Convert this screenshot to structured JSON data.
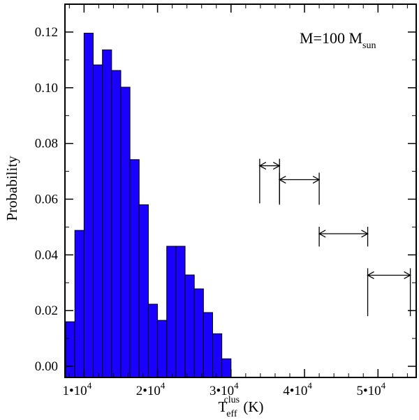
{
  "chart_data": {
    "type": "bar",
    "annotation": {
      "main": "M=100 M",
      "sub": "sun"
    },
    "xlabel": {
      "main": "T",
      "sub": "eff",
      "sup": "clus",
      "unit": " (K)"
    },
    "ylabel": "Probability",
    "xlim": [
      7400,
      55200
    ],
    "ylim": [
      -0.004,
      0.13
    ],
    "x_ticks": [
      {
        "value": 10000,
        "mantissa": "1",
        "exp": "4"
      },
      {
        "value": 20000,
        "mantissa": "2",
        "exp": "4"
      },
      {
        "value": 30000,
        "mantissa": "3",
        "exp": "4"
      },
      {
        "value": 40000,
        "mantissa": "4",
        "exp": "4"
      },
      {
        "value": 50000,
        "mantissa": "5",
        "exp": "4"
      }
    ],
    "y_ticks": [
      "0.00",
      "0.02",
      "0.04",
      "0.06",
      "0.08",
      "0.10",
      "0.12"
    ],
    "bin_width": 1250,
    "bin_starts": [
      7500,
      8750,
      10000,
      11250,
      12500,
      13750,
      15000,
      16250,
      17500,
      18750,
      20000,
      21250,
      22500,
      23750,
      25000,
      26250,
      27500,
      28750,
      30000,
      31250,
      32500
    ],
    "values": [
      0.016,
      0.0488,
      0.1196,
      0.1082,
      0.1136,
      0.1062,
      0.1002,
      0.0742,
      0.058,
      0.0223,
      0.0165,
      0.0431,
      0.0431,
      0.0328,
      0.0278,
      0.0193,
      0.0117,
      0.0027,
      0,
      0,
      0
    ],
    "bar_color": "#1a00ff",
    "markers": [
      {
        "x1": 33900,
        "x2": 36600,
        "y_low": 0.0585,
        "y_mid": 0.072
      },
      {
        "x1": 36600,
        "x2": 42000,
        "y_low": 0.058,
        "y_mid": 0.067
      },
      {
        "x1": 42000,
        "x2": 48600,
        "y_low": 0.043,
        "y_mid": 0.0476
      },
      {
        "x1": 48600,
        "x2": 54400,
        "y_low": 0.018,
        "y_mid": 0.0327
      }
    ]
  }
}
